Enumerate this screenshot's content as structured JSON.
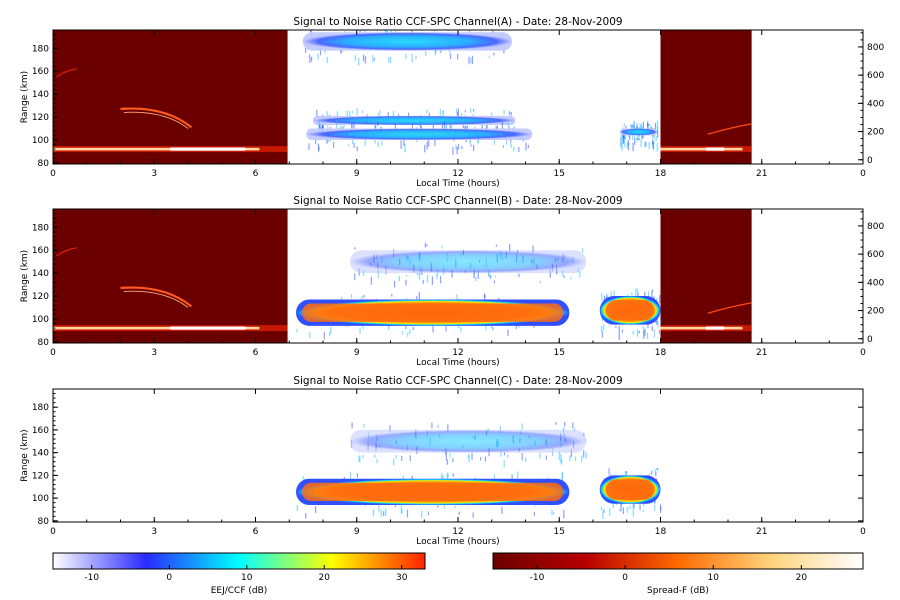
{
  "chart_data": [
    {
      "type": "heatmap",
      "title": "Signal to Noise Ratio CCF-SPC Channel(A) - Date: 28-Nov-2009",
      "xlabel": "Local Time (hours)",
      "ylabel": "Range (km)",
      "xlim": [
        0,
        24
      ],
      "ylim": [
        79,
        196
      ],
      "y2lim": [
        -30,
        920
      ],
      "xticks": [
        "0",
        "3",
        "6",
        "9",
        "12",
        "15",
        "18",
        "21",
        "0"
      ],
      "yticks": [
        "80",
        "100",
        "120",
        "140",
        "160",
        "180"
      ],
      "y2ticks": [
        "0",
        "200",
        "400",
        "600",
        "800"
      ],
      "spread_f_windows": [
        [
          0,
          6.95
        ],
        [
          18,
          20.7
        ]
      ],
      "features": [
        {
          "kind": "ccf",
          "t": [
            7.4,
            13.6
          ],
          "r": [
            178,
            194
          ],
          "snr": -2
        },
        {
          "kind": "ccf",
          "t": [
            7.7,
            13.7
          ],
          "r": [
            113,
            121
          ],
          "snr": -1
        },
        {
          "kind": "ccf",
          "t": [
            7.5,
            14.2
          ],
          "r": [
            100,
            110
          ],
          "snr": 2
        },
        {
          "kind": "ccf",
          "t": [
            16.8,
            17.9
          ],
          "r": [
            104,
            110
          ],
          "snr": -2
        }
      ]
    },
    {
      "type": "heatmap",
      "title": "Signal to Noise Ratio CCF-SPC Channel(B) - Date: 28-Nov-2009",
      "xlabel": "Local Time (hours)",
      "ylabel": "Range (km)",
      "xlim": [
        0,
        24
      ],
      "ylim": [
        79,
        196
      ],
      "y2lim": [
        -30,
        920
      ],
      "xticks": [
        "0",
        "3",
        "6",
        "9",
        "12",
        "15",
        "18",
        "21",
        "0"
      ],
      "yticks": [
        "80",
        "100",
        "120",
        "140",
        "160",
        "180"
      ],
      "y2ticks": [
        "0",
        "200",
        "400",
        "600",
        "800"
      ],
      "spread_f_windows": [
        [
          0,
          6.95
        ],
        [
          18,
          20.7
        ]
      ],
      "features": [
        {
          "kind": "ccf",
          "t": [
            7.2,
            15.3
          ],
          "r": [
            94,
            117
          ],
          "snr": 22
        },
        {
          "kind": "ccf",
          "t": [
            16.2,
            18
          ],
          "r": [
            95,
            120
          ],
          "snr": 22
        },
        {
          "kind": "ccf",
          "t": [
            8.8,
            15.8
          ],
          "r": [
            140,
            160
          ],
          "snr": 3
        }
      ]
    },
    {
      "type": "heatmap",
      "title": "Signal to Noise Ratio CCF-SPC Channel(C) - Date: 28-Nov-2009",
      "xlabel": "Local Time (hours)",
      "ylabel": "Range (km)",
      "xlim": [
        0,
        24
      ],
      "ylim": [
        79,
        196
      ],
      "xticks": [
        "0",
        "3",
        "6",
        "9",
        "12",
        "15",
        "18",
        "21",
        "0"
      ],
      "yticks": [
        "80",
        "100",
        "120",
        "140",
        "160",
        "180"
      ],
      "spread_f_windows": [],
      "features": [
        {
          "kind": "ccf",
          "t": [
            7.2,
            15.3
          ],
          "r": [
            94,
            117
          ],
          "snr": 22
        },
        {
          "kind": "ccf",
          "t": [
            16.2,
            18
          ],
          "r": [
            95,
            120
          ],
          "snr": 22
        },
        {
          "kind": "ccf",
          "t": [
            8.8,
            15.8
          ],
          "r": [
            140,
            160
          ],
          "snr": 3
        }
      ]
    }
  ],
  "colorbars": [
    {
      "label": "EEJ/CCF (dB)",
      "range": [
        -15,
        33
      ],
      "ticks": [
        "-10",
        "0",
        "10",
        "20",
        "30"
      ],
      "tick_values": [
        -10,
        0,
        10,
        20,
        30
      ],
      "stops": [
        "#ffffff",
        "#2a2aff",
        "#00ffff",
        "#ffff00",
        "#ff2200"
      ]
    },
    {
      "label": "Spread-F (dB)",
      "range": [
        -15,
        27
      ],
      "ticks": [
        "-10",
        "0",
        "10",
        "20"
      ],
      "tick_values": [
        -10,
        0,
        10,
        20
      ],
      "stops": [
        "#6b0000",
        "#b80000",
        "#ff6a00",
        "#ffd37a",
        "#ffffff"
      ]
    }
  ]
}
